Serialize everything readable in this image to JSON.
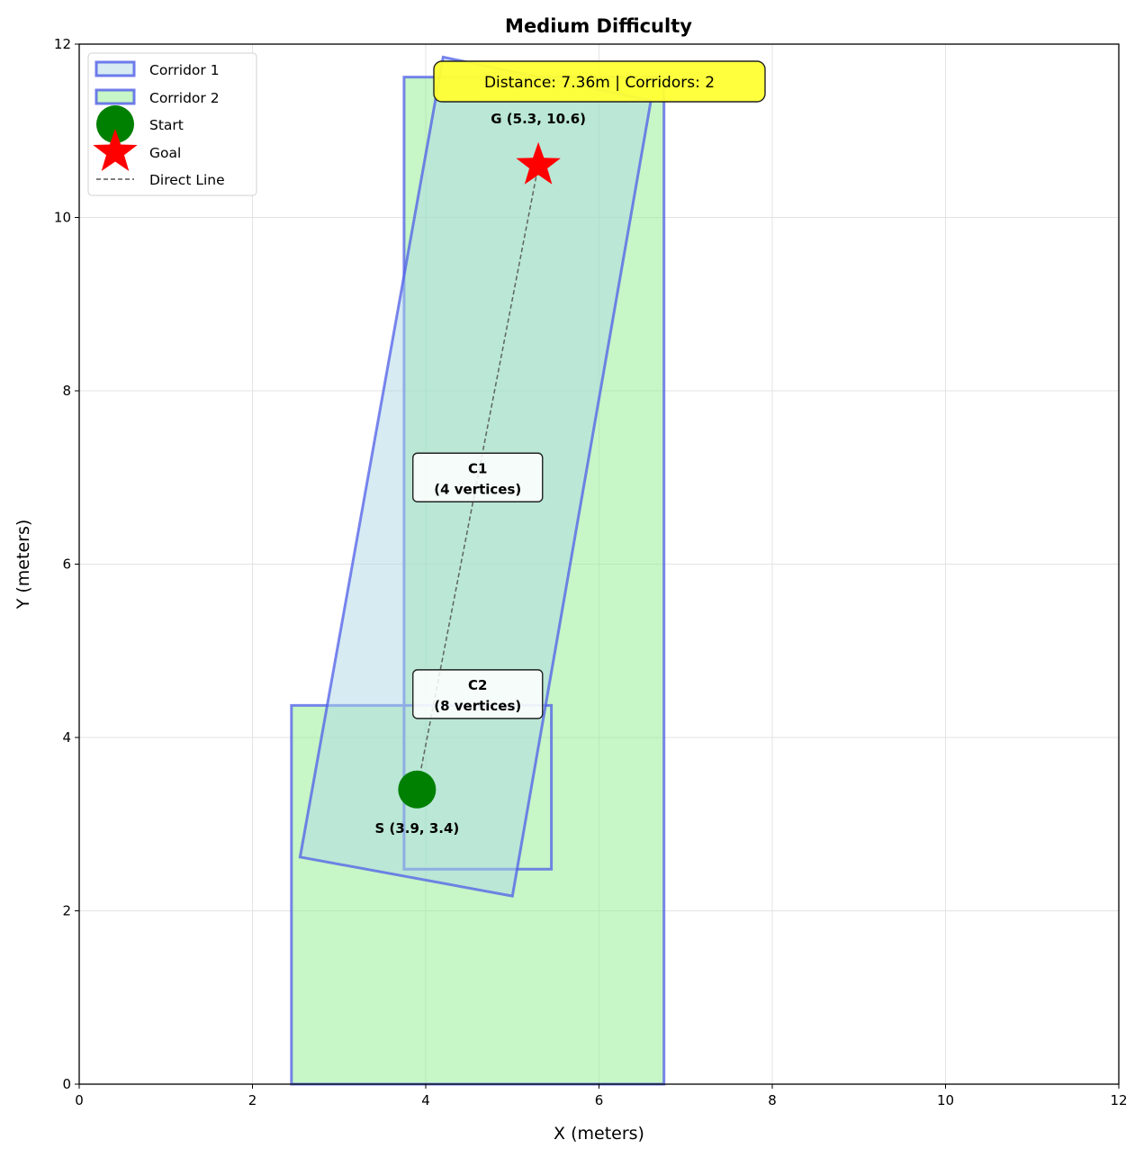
{
  "chart_data": {
    "type": "scatter",
    "title": "Medium Difficulty",
    "xlabel": "X (meters)",
    "ylabel": "Y (meters)",
    "xlim": [
      0,
      12
    ],
    "ylim": [
      0,
      12
    ],
    "xticks": [
      "0",
      "2",
      "4",
      "6",
      "8",
      "10",
      "12"
    ],
    "yticks": [
      "0",
      "2",
      "4",
      "6",
      "8",
      "10",
      "12"
    ],
    "grid": true,
    "legend_position": "top-left",
    "polygons": [
      {
        "name": "Corridor 1",
        "color": "#add8e6",
        "edge_color": "#4f5de8",
        "vertices": [
          [
            2.55,
            2.62
          ],
          [
            5.0,
            2.17
          ],
          [
            6.6,
            11.35
          ],
          [
            4.2,
            11.85
          ]
        ]
      },
      {
        "name": "Corridor 2",
        "color": "#90ee90",
        "edge_color": "#4f5de8",
        "vertices": [
          [
            2.45,
            0.0
          ],
          [
            6.75,
            0.0
          ],
          [
            6.75,
            11.62
          ],
          [
            3.75,
            11.62
          ],
          [
            3.75,
            2.48
          ],
          [
            5.45,
            2.48
          ],
          [
            5.45,
            4.37
          ],
          [
            2.45,
            4.37
          ]
        ]
      }
    ],
    "start": {
      "label": "Start",
      "x": 3.9,
      "y": 3.4,
      "annotation": "S (3.9, 3.4)",
      "color": "#008000"
    },
    "goal": {
      "label": "Goal",
      "x": 5.3,
      "y": 10.6,
      "annotation": "G (5.3, 10.6)",
      "color": "#ff0000"
    },
    "direct_line": {
      "label": "Direct Line",
      "color": "#555555"
    },
    "corridor_labels": [
      {
        "line1": "C1",
        "line2": "(4 vertices)",
        "x": 4.6,
        "y": 7.0
      },
      {
        "line1": "C2",
        "line2": "(8 vertices)",
        "x": 4.6,
        "y": 4.5
      }
    ],
    "info_box": {
      "text": "Distance: 7.36m | Corridors: 2",
      "color": "#ffff33"
    }
  }
}
